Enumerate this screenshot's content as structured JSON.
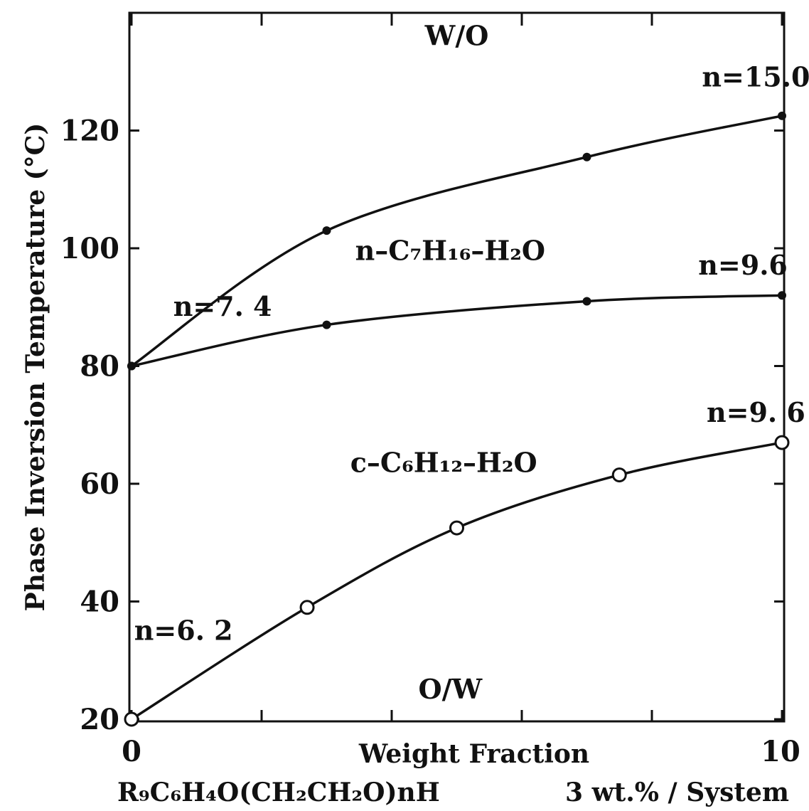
{
  "chart_data": {
    "type": "line",
    "title": "",
    "xlabel": "Weight Fraction",
    "ylabel": "Phase Inversion Temperature (°C)",
    "xlim": [
      0,
      10
    ],
    "ylim": [
      20,
      140
    ],
    "x_tick_labels": [
      "0",
      "10"
    ],
    "y_ticks": [
      20,
      40,
      60,
      80,
      100,
      120
    ],
    "x_sublabel_left": "R₉C₆H₄O(CH₂CH₂O)nH",
    "x_sublabel_right": "3 wt.% / System",
    "grid": false,
    "series": [
      {
        "name": "n-C₇H₁₆-H₂O (upper)",
        "marker": "filled",
        "x": [
          0,
          3,
          7,
          10
        ],
        "y": [
          80,
          103,
          115.5,
          122.5
        ]
      },
      {
        "name": "n-C₇H₁₆-H₂O (lower)",
        "marker": "filled",
        "x": [
          0,
          3,
          7,
          10
        ],
        "y": [
          80,
          87,
          91,
          92
        ]
      },
      {
        "name": "c-C₆H₁₂-H₂O",
        "marker": "open",
        "x": [
          0,
          2.7,
          5,
          7.5,
          10
        ],
        "y": [
          20,
          39,
          52.5,
          61.5,
          67
        ]
      }
    ],
    "annotations": [
      {
        "text": "W/O",
        "x": 5,
        "y": 134.5
      },
      {
        "text": "n=15.0",
        "x": 9.6,
        "y": 127.5
      },
      {
        "text": "n–C₇H₁₆–H₂O",
        "x": 4.9,
        "y": 98
      },
      {
        "text": "n=9.6",
        "x": 9.4,
        "y": 95.5
      },
      {
        "text": "n=7. 4",
        "x": 1.4,
        "y": 88.5
      },
      {
        "text": "n=9. 6",
        "x": 9.6,
        "y": 70.5
      },
      {
        "text": "c–C₆H₁₂–H₂O",
        "x": 4.8,
        "y": 62
      },
      {
        "text": "n=6. 2",
        "x": 0.8,
        "y": 33.5
      },
      {
        "text": "O/W",
        "x": 4.9,
        "y": 23.5
      }
    ]
  }
}
